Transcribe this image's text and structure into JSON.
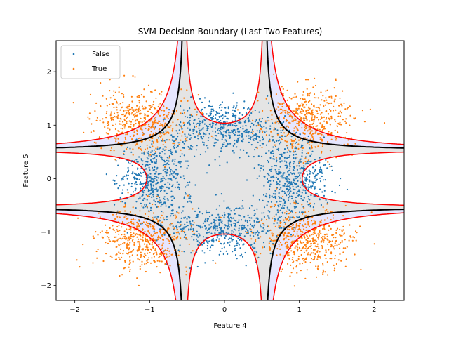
{
  "chart_data": {
    "type": "scatter",
    "title": "SVM Decision Boundary (Last Two Features)",
    "xlabel": "Feature 4",
    "ylabel": "Feature 5",
    "xlim": [
      -2.25,
      2.4
    ],
    "ylim": [
      -2.28,
      2.58
    ],
    "x_ticks": [
      "−2",
      "−1",
      "0",
      "1",
      "2"
    ],
    "y_ticks": [
      "−2",
      "−1",
      "0",
      "1",
      "2"
    ],
    "x_tick_values": [
      -2,
      -1,
      0,
      1,
      2
    ],
    "y_tick_values": [
      -2,
      -1,
      0,
      1,
      2
    ],
    "legend": {
      "position": "top-left",
      "entries": [
        {
          "label": "False",
          "color": "#1f77b4"
        },
        {
          "label": "True",
          "color": "#ff7f0e"
        }
      ]
    },
    "series": [
      {
        "name": "False",
        "color": "#1f77b4",
        "distribution": "points around a ring of radius ~1 centred on the origin, denser near the axes",
        "approx_count": 2000
      },
      {
        "name": "True",
        "color": "#ff7f0e",
        "distribution": "four diagonal clusters centred near (±1.1, ±1.1)",
        "approx_count": 2000
      }
    ],
    "decision_function": "f(x,y) = 0.3 + 0.65·(x²+y²) − 2.25·x²·y²",
    "boundary_levels": {
      "decision_boundary": 0,
      "margins": [
        -1,
        1
      ]
    },
    "region_colors": {
      "negative_margin": "#e6e6ff",
      "positive_margin": "#e4e4e4",
      "decision_line": "#000000",
      "margin_line": "#ff0000"
    },
    "grid": false
  }
}
